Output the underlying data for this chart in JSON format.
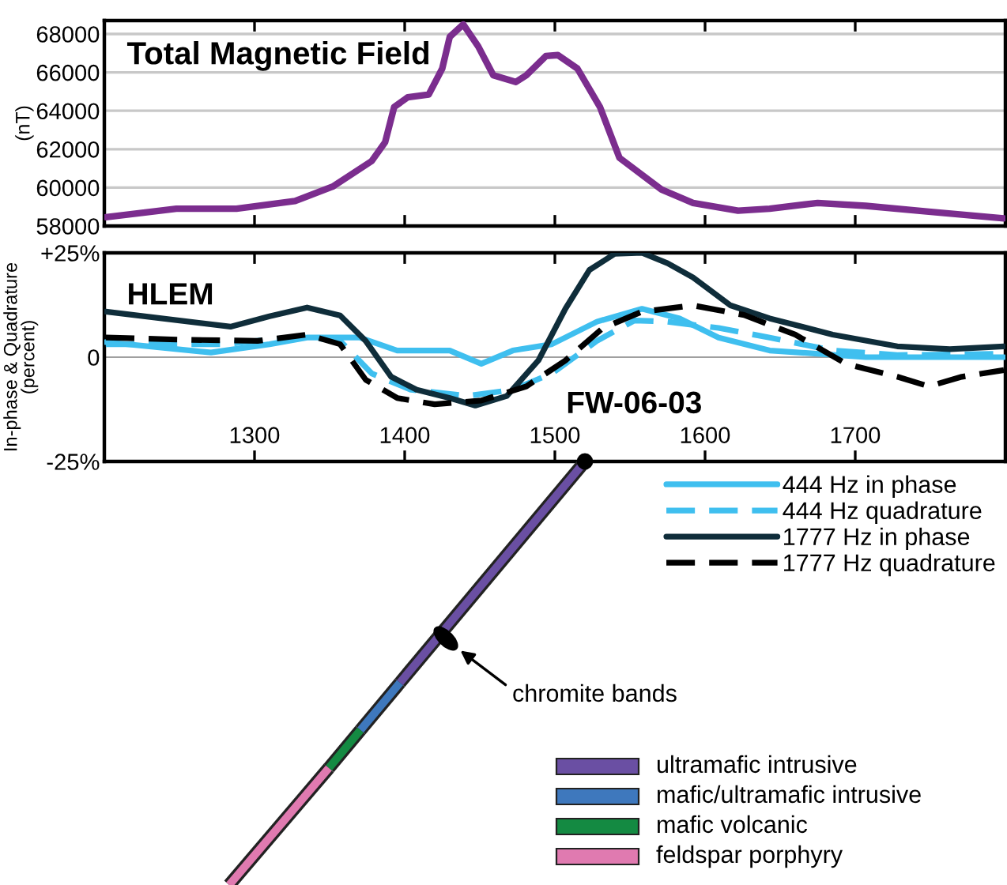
{
  "chart_data": [
    {
      "type": "line",
      "title": "Total Magnetic Field",
      "ylabel": "(nT)",
      "xlim": [
        1200,
        1800
      ],
      "xticks": [
        1300,
        1400,
        1500,
        1600,
        1700
      ],
      "ylim": [
        58000,
        68700
      ],
      "yticks": [
        58000,
        60000,
        62000,
        64000,
        66000,
        68000
      ],
      "grid": "y",
      "tick_labels": "y",
      "line_style": "solid",
      "marker": "none",
      "series": [
        {
          "color": "#7b2d8e",
          "x": [
            1201,
            1248,
            1288,
            1327,
            1352,
            1378,
            1387,
            1393,
            1402,
            1416,
            1425,
            1430,
            1439,
            1449,
            1459,
            1474,
            1481,
            1494,
            1502,
            1515,
            1530,
            1543,
            1571,
            1592,
            1622,
            1643,
            1675,
            1707,
            1749,
            1799
          ],
          "values": [
            58460,
            58900,
            58900,
            59300,
            60050,
            61380,
            62370,
            64200,
            64700,
            64850,
            66200,
            67850,
            68500,
            67350,
            65850,
            65500,
            65850,
            66850,
            66900,
            66200,
            64200,
            61550,
            59900,
            59200,
            58800,
            58900,
            59200,
            59050,
            58750,
            58400
          ]
        }
      ]
    },
    {
      "type": "line",
      "title": "HLEM",
      "ylabel": "In-phase & Quadrature\n(percent)",
      "xlim": [
        1200,
        1800
      ],
      "xticks": [
        1300,
        1400,
        1500,
        1600,
        1700
      ],
      "ylim": [
        -25,
        25
      ],
      "yticks": [
        {
          "value": 25,
          "label": "+25%"
        },
        0,
        {
          "value": -25,
          "label": "-25%"
        }
      ],
      "grid": false,
      "legend": "bottom right",
      "marker": "none",
      "ref_lines": [
        {
          "axis": "y",
          "value": 0,
          "color": "#a0a0a0"
        }
      ],
      "annotations": [
        "FW-06-03",
        "chromite bands",
        "ultramafic intrusive",
        "mafic/ultramafic intrusive",
        "mafic volcanic",
        "feldspar porphyry"
      ],
      "series": [
        {
          "name": "444 Hz in phase",
          "color": "#3fbfef",
          "line_style": "solid",
          "x": [
            1201,
            1238,
            1271,
            1310,
            1335,
            1370,
            1395,
            1430,
            1451,
            1472,
            1498,
            1528,
            1558,
            1583,
            1609,
            1643,
            1707,
            1799
          ],
          "values": [
            3.6,
            2.3,
            1.1,
            3.1,
            4.7,
            4.7,
            1.6,
            1.6,
            -1.6,
            1.6,
            3.1,
            8.5,
            11.6,
            9.3,
            4.7,
            1.6,
            0,
            0
          ]
        },
        {
          "name": "444 Hz quadrature",
          "color": "#3fbfef",
          "line_style": "dashed",
          "x": [
            1201,
            1280,
            1331,
            1357,
            1378,
            1404,
            1442,
            1472,
            1498,
            1528,
            1553,
            1575,
            1609,
            1643,
            1685,
            1728,
            1799
          ],
          "values": [
            3.1,
            3.1,
            5,
            3.9,
            -3.9,
            -7.8,
            -9.3,
            -7.8,
            -3.9,
            3.9,
            8.8,
            8.5,
            7,
            4.7,
            1.6,
            0.5,
            0.8
          ]
        },
        {
          "name": "1777 Hz in phase",
          "color": "#0f2d3a",
          "line_style": "solid",
          "x": [
            1201,
            1284,
            1310,
            1335,
            1357,
            1374,
            1391,
            1408,
            1430,
            1447,
            1468,
            1489,
            1507,
            1523,
            1540,
            1558,
            1575,
            1592,
            1617,
            1643,
            1685,
            1728,
            1763,
            1799
          ],
          "values": [
            10.9,
            7.3,
            9.8,
            11.9,
            10,
            3.9,
            -4.7,
            -7.8,
            -9.8,
            -11.6,
            -9.3,
            -0.8,
            11.6,
            20.9,
            24.8,
            25,
            22.5,
            19.1,
            12.4,
            9.3,
            5.4,
            2.6,
            1.9,
            2.6
          ]
        },
        {
          "name": "1777 Hz quadrature",
          "color": "#000000",
          "line_style": "dashed",
          "x": [
            1201,
            1250,
            1302,
            1335,
            1357,
            1374,
            1395,
            1420,
            1451,
            1481,
            1507,
            1532,
            1558,
            1592,
            1626,
            1660,
            1694,
            1728,
            1749,
            1771,
            1799
          ],
          "values": [
            4.7,
            4.2,
            3.9,
            5.4,
            3.1,
            -5.4,
            -9.8,
            -11.3,
            -10.4,
            -7,
            -0.8,
            7,
            10.9,
            12.4,
            10.1,
            5.4,
            -1.6,
            -4.7,
            -7,
            -4.7,
            -3.1
          ]
        }
      ]
    }
  ]
}
